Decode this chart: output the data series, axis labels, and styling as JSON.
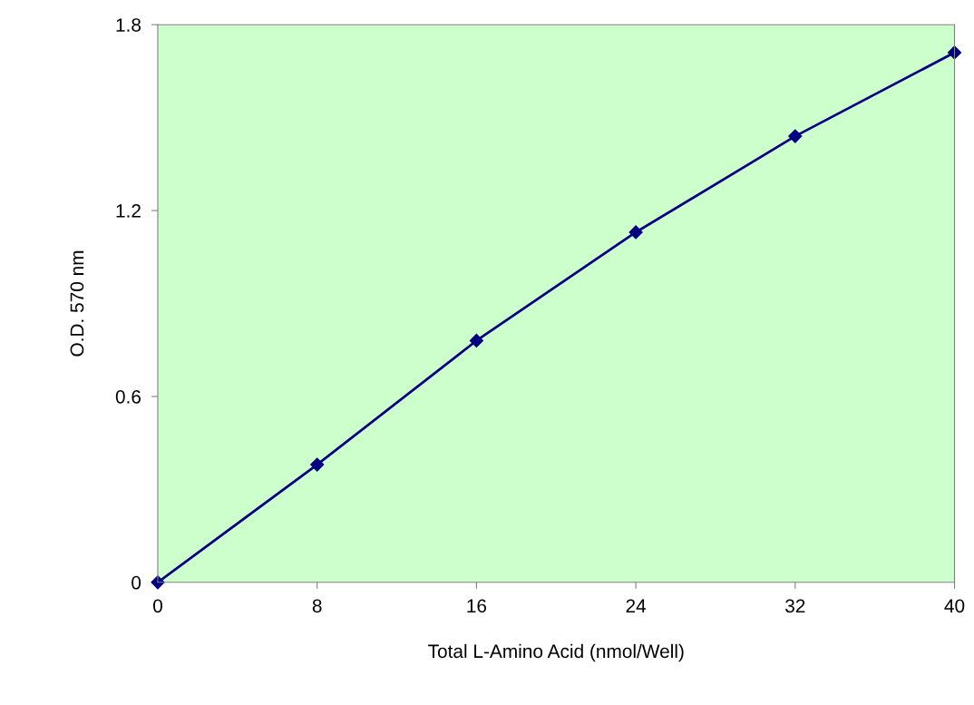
{
  "chart_data": {
    "type": "line",
    "xlabel": "Total L-Amino Acid (nmol/Well)",
    "ylabel": "O.D. 570 nm",
    "x": [
      0,
      8,
      16,
      24,
      32,
      40
    ],
    "series": [
      {
        "color": "#000080",
        "values": [
          0,
          0.38,
          0.78,
          1.13,
          1.44,
          1.71
        ]
      }
    ],
    "xlim": [
      0,
      40
    ],
    "xticks": [
      0,
      8,
      16,
      24,
      32,
      40
    ],
    "ylim": [
      0,
      1.8
    ],
    "yticks": [
      0,
      0.6,
      1.2,
      1.8
    ],
    "marker": "diamond",
    "line_style": "solid",
    "grid": false,
    "legend": false
  }
}
